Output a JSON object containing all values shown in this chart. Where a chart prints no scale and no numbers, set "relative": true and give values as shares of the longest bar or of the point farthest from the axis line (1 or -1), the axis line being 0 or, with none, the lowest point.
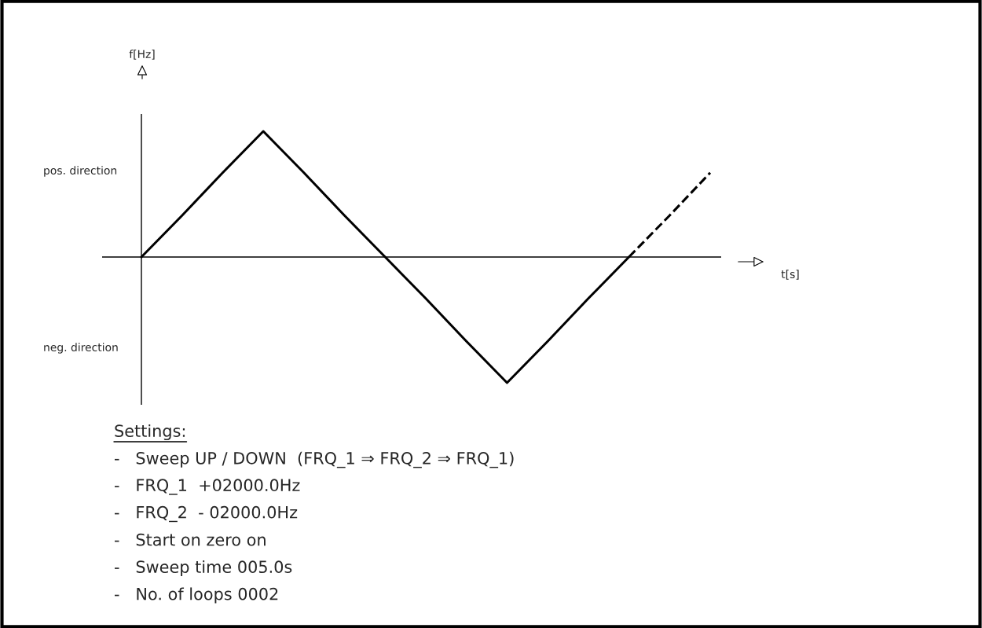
{
  "chart_data": {
    "type": "line",
    "relative": true,
    "categories": [
      null,
      null,
      null,
      null,
      null,
      null,
      null,
      null,
      null,
      null,
      null,
      null,
      null,
      null,
      null
    ],
    "series": [
      {
        "color": "#000000",
        "line_style": "solid",
        "values": [
          0,
          0.33,
          0.67,
          1,
          0.67,
          0.33,
          0,
          -0.33,
          -0.67,
          -1,
          -0.67,
          -0.33,
          0,
          null,
          null
        ]
      },
      {
        "color": "#000000",
        "line_style": "dashed",
        "values": [
          null,
          null,
          null,
          null,
          null,
          null,
          null,
          null,
          null,
          null,
          null,
          null,
          0,
          0.33,
          0.67
        ]
      }
    ],
    "annotations": [
      "pos. direction",
      "neg. direction",
      "f[Hz]",
      "t[s]",
      "Settings:",
      "-   Sweep UP / DOWN  (FRQ_1 ⇒ FRQ_2 ⇒ FRQ_1)",
      "-   FRQ_1  +02000.0Hz",
      "-   FRQ_2  - 02000.0Hz",
      "-   Start on zero on",
      "-   Sweep time 005.0s",
      "-   No. of loops 0002"
    ],
    "marker": "none"
  }
}
